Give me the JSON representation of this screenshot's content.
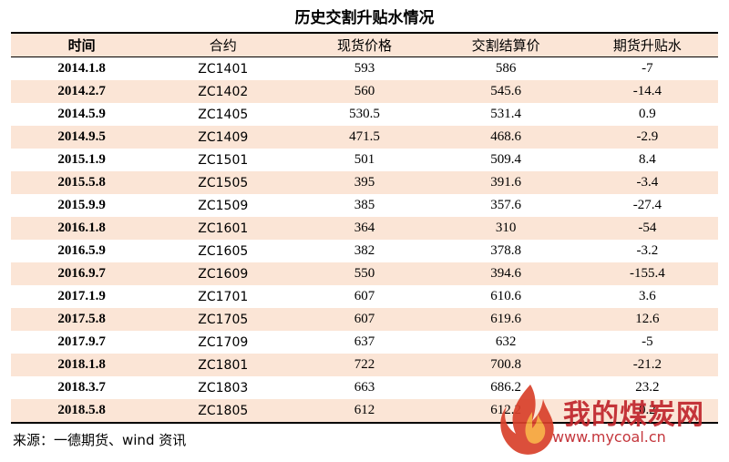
{
  "title": "历史交割升贴水情况",
  "headers": [
    "时间",
    "合约",
    "现货价格",
    "交割结算价",
    "期货升贴水"
  ],
  "rows": [
    [
      "2014.1.8",
      "ZC1401",
      "593",
      "586",
      "-7"
    ],
    [
      "2014.2.7",
      "ZC1402",
      "560",
      "545.6",
      "-14.4"
    ],
    [
      "2014.5.9",
      "ZC1405",
      "530.5",
      "531.4",
      "0.9"
    ],
    [
      "2014.9.5",
      "ZC1409",
      "471.5",
      "468.6",
      "-2.9"
    ],
    [
      "2015.1.9",
      "ZC1501",
      "501",
      "509.4",
      "8.4"
    ],
    [
      "2015.5.8",
      "ZC1505",
      "395",
      "391.6",
      "-3.4"
    ],
    [
      "2015.9.9",
      "ZC1509",
      "385",
      "357.6",
      "-27.4"
    ],
    [
      "2016.1.8",
      "ZC1601",
      "364",
      "310",
      "-54"
    ],
    [
      "2016.5.9",
      "ZC1605",
      "382",
      "378.8",
      "-3.2"
    ],
    [
      "2016.9.7",
      "ZC1609",
      "550",
      "394.6",
      "-155.4"
    ],
    [
      "2017.1.9",
      "ZC1701",
      "607",
      "610.6",
      "3.6"
    ],
    [
      "2017.5.8",
      "ZC1705",
      "607",
      "619.6",
      "12.6"
    ],
    [
      "2017.9.7",
      "ZC1709",
      "637",
      "632",
      "-5"
    ],
    [
      "2018.1.8",
      "ZC1801",
      "722",
      "700.8",
      "-21.2"
    ],
    [
      "2018.3.7",
      "ZC1803",
      "663",
      "686.2",
      "23.2"
    ],
    [
      "2018.5.8",
      "ZC1805",
      "612",
      "612.2",
      "0.2"
    ]
  ],
  "source": "来源：一德期货、wind 资讯",
  "watermark": {
    "title": "我的煤炭网",
    "url": "www.mycoal.cn"
  },
  "colors": {
    "stripe": "#fbe5d6",
    "watermark": "#c0262c"
  }
}
